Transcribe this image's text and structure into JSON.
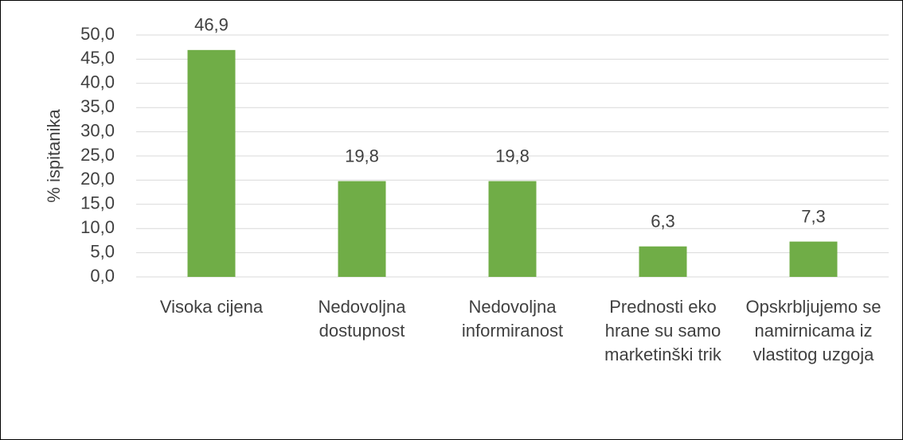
{
  "chart_data": {
    "type": "bar",
    "y_label": "% ispitanika",
    "categories": [
      "Visoka cijena",
      "Nedovoljna dostupnost",
      "Nedovoljna informiranost",
      "Prednosti eko hrane su samo marketinški trik",
      "Opskrbljujemo se namirnicama iz vlastitog uzgoja"
    ],
    "values": [
      46.9,
      19.8,
      19.8,
      6.3,
      7.3
    ],
    "value_labels": [
      "46,9",
      "19,8",
      "19,8",
      "6,3",
      "7,3"
    ],
    "color": "#70ad47",
    "ylim": [
      0,
      50
    ],
    "yticks": [
      {
        "value": 0,
        "label": "0,0"
      },
      {
        "value": 5,
        "label": "5,0"
      },
      {
        "value": 10,
        "label": "10,0"
      },
      {
        "value": 15,
        "label": "15,0"
      },
      {
        "value": 20,
        "label": "20,0"
      },
      {
        "value": 25,
        "label": "25,0"
      },
      {
        "value": 30,
        "label": "30,0"
      },
      {
        "value": 35,
        "label": "35,0"
      },
      {
        "value": 40,
        "label": "40,0"
      },
      {
        "value": 45,
        "label": "45,0"
      },
      {
        "value": 50,
        "label": "50,0"
      }
    ],
    "grid": true
  }
}
